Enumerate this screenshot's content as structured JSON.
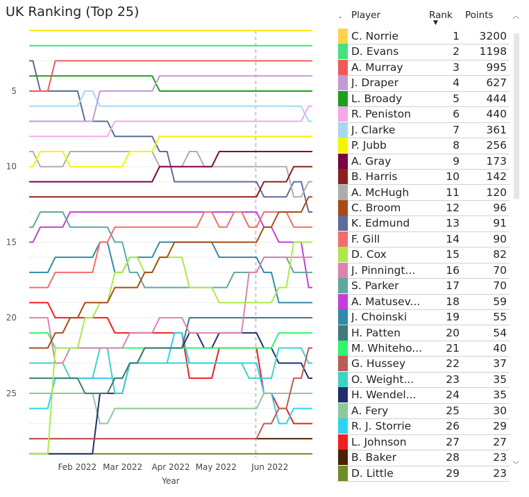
{
  "title": "UK Ranking (Top 25)",
  "chart_data": {
    "type": "line",
    "subtype": "ranking bump chart",
    "title": "UK Ranking (Top 25)",
    "xlabel": "Year",
    "ylabel": "",
    "x_ticks": [
      "Feb 2022",
      "Mar 2022",
      "Apr 2022",
      "May 2022",
      "Jun 2022"
    ],
    "y_ticks": [
      5,
      10,
      15,
      20,
      25
    ],
    "ylim": [
      1,
      28.5
    ],
    "y_inverted": true,
    "grid": true,
    "reference_line_label": "Jun 2022",
    "series": [
      {
        "name": "C. Norrie",
        "color": "#F8E71C",
        "values": [
          1,
          1,
          1,
          1,
          1,
          1,
          1,
          1,
          1,
          1,
          1,
          1,
          1,
          1,
          1,
          1,
          1,
          1,
          1,
          1
        ]
      },
      {
        "name": "D. Evans",
        "color": "#45E17F",
        "values": [
          2,
          2,
          2,
          2,
          2,
          2,
          2,
          2,
          2,
          2,
          2,
          2,
          2,
          2,
          2,
          2,
          2,
          2,
          2,
          2
        ]
      },
      {
        "name": "A. Murray",
        "color": "#EE5B57",
        "values": [
          5,
          5,
          3,
          3,
          3,
          3,
          3,
          3,
          3,
          3,
          3,
          3,
          3,
          3,
          3,
          3,
          3,
          3,
          3,
          3
        ]
      },
      {
        "name": "J. Draper",
        "color": "#C39BD3",
        "values": [
          7,
          7,
          7,
          7,
          7,
          5,
          5,
          5,
          5,
          4,
          4,
          4,
          4,
          4,
          4,
          4,
          4,
          4,
          4,
          4
        ]
      },
      {
        "name": "L. Broady",
        "color": "#1E9E1E",
        "values": [
          4,
          4,
          4,
          4,
          4,
          4,
          4,
          4,
          4,
          5,
          5,
          5,
          5,
          5,
          5,
          5,
          5,
          5,
          5,
          5
        ]
      },
      {
        "name": "R. Peniston",
        "color": "#F5A9E8",
        "values": [
          8,
          8,
          8,
          8,
          8,
          8,
          7,
          7,
          7,
          7,
          7,
          7,
          7,
          7,
          7,
          7,
          7,
          7,
          7,
          6
        ]
      },
      {
        "name": "J. Clarke",
        "color": "#A6D8F0",
        "values": [
          6,
          6,
          6,
          6,
          5,
          6,
          6,
          6,
          6,
          6,
          6,
          6,
          6,
          6,
          6,
          6,
          6,
          6,
          6,
          7
        ]
      },
      {
        "name": "P. Jubb",
        "color": "#F5F500",
        "values": [
          10,
          9,
          9,
          10,
          10,
          10,
          10,
          9,
          9,
          8,
          8,
          8,
          8,
          8,
          8,
          8,
          8,
          8,
          8,
          8
        ]
      },
      {
        "name": "A. Gray",
        "color": "#7B0046",
        "values": [
          11,
          11,
          11,
          11,
          11,
          11,
          11,
          11,
          11,
          10,
          10,
          10,
          10,
          9,
          9,
          9,
          9,
          9,
          9,
          9
        ]
      },
      {
        "name": "B. Harris",
        "color": "#8B2020",
        "values": [
          12,
          12,
          12,
          12,
          12,
          12,
          12,
          12,
          12,
          12,
          12,
          12,
          12,
          12,
          12,
          12,
          11,
          11,
          10,
          10
        ]
      },
      {
        "name": "A. McHugh",
        "color": "#ADADAD",
        "values": [
          9,
          10,
          10,
          9,
          9,
          9,
          9,
          9,
          9,
          10,
          10,
          9,
          10,
          10,
          10,
          10,
          10,
          10,
          12,
          11
        ]
      },
      {
        "name": "C. Broom",
        "color": "#A84C14",
        "values": [
          22,
          22,
          21,
          20,
          19,
          19,
          18,
          18,
          17,
          16,
          15,
          15,
          15,
          15,
          15,
          15,
          14,
          13,
          13,
          12
        ]
      },
      {
        "name": "K. Edmund",
        "color": "#5C6B9C",
        "values": [
          3,
          5,
          5,
          5,
          7,
          7,
          8,
          8,
          8,
          9,
          11,
          11,
          11,
          11,
          11,
          11,
          12,
          12,
          11,
          13
        ]
      },
      {
        "name": "F. Gill",
        "color": "#F56C6C",
        "values": [
          18,
          18,
          17,
          17,
          17,
          15,
          14,
          14,
          14,
          14,
          14,
          14,
          13,
          14,
          13,
          14,
          13,
          13,
          14,
          14
        ]
      },
      {
        "name": "D. Cox",
        "color": "#ABE94A",
        "values": [
          29,
          29,
          22,
          22,
          20,
          19,
          17,
          16,
          17,
          16,
          16,
          18,
          18,
          19,
          19,
          19,
          19,
          18,
          15,
          15
        ]
      },
      {
        "name": "J. Pinnington",
        "color": "#DE82AF",
        "values": [
          20,
          20,
          23,
          22,
          22,
          22,
          22,
          21,
          21,
          20,
          20,
          21,
          21,
          21,
          21,
          17,
          16,
          16,
          16,
          16
        ]
      },
      {
        "name": "S. Parker",
        "color": "#5FA89B",
        "values": [
          14,
          13,
          13,
          14,
          14,
          14,
          15,
          17,
          18,
          18,
          18,
          18,
          18,
          18,
          17,
          17,
          16,
          16,
          17,
          17
        ]
      },
      {
        "name": "A. Matusevich",
        "color": "#C43FD8",
        "values": [
          15,
          14,
          14,
          13,
          13,
          13,
          13,
          13,
          13,
          13,
          13,
          13,
          13,
          13,
          13,
          13,
          14,
          15,
          15,
          18
        ]
      },
      {
        "name": "J. Choinski",
        "color": "#318AA8",
        "values": [
          17,
          17,
          16,
          16,
          16,
          15,
          17,
          16,
          16,
          15,
          15,
          15,
          15,
          16,
          16,
          16,
          17,
          19,
          19,
          19
        ]
      },
      {
        "name": "H. Patten",
        "color": "#3D7A78",
        "values": [
          24,
          24,
          24,
          24,
          25,
          25,
          24,
          23,
          22,
          22,
          22,
          20,
          20,
          20,
          20,
          20,
          20,
          20,
          20,
          20
        ]
      },
      {
        "name": "M. Whitehouse",
        "color": "#2EF56E",
        "values": [
          21,
          21,
          22,
          22,
          22,
          22,
          22,
          22,
          22,
          22,
          22,
          22,
          22,
          22,
          22,
          22,
          22,
          21,
          21,
          21
        ]
      },
      {
        "name": "G. Hussey",
        "color": "#BE5A56",
        "values": [
          28,
          28,
          28,
          28,
          28,
          28,
          28,
          28,
          28,
          28,
          28,
          28,
          28,
          28,
          28,
          28,
          27,
          26,
          24,
          22
        ]
      },
      {
        "name": "O. Weightman",
        "color": "#3FD2C7",
        "values": [
          23,
          23,
          23,
          24,
          24,
          22,
          25,
          23,
          23,
          23,
          23,
          23,
          23,
          23,
          23,
          24,
          24,
          22,
          22,
          23
        ]
      },
      {
        "name": "H. Wendelken",
        "color": "#1F2F6E",
        "values": [
          29,
          29,
          29,
          29,
          29,
          25,
          25,
          23,
          22,
          22,
          22,
          21,
          22,
          21,
          21,
          21,
          22,
          23,
          23,
          24
        ]
      },
      {
        "name": "A. Fery",
        "color": "#8FC89A",
        "values": [
          25,
          25,
          25,
          25,
          25,
          27,
          26,
          26,
          26,
          26,
          26,
          26,
          26,
          26,
          26,
          26,
          25,
          25,
          25,
          25
        ]
      },
      {
        "name": "R. J. Storrie",
        "color": "#2CD2F2",
        "values": [
          26,
          26,
          24,
          24,
          24,
          24,
          24,
          23,
          23,
          23,
          21,
          23,
          23,
          23,
          23,
          23,
          25,
          27,
          26,
          26
        ]
      },
      {
        "name": "L. Johnson",
        "color": "#F21E1E",
        "values": [
          19,
          19,
          20,
          20,
          20,
          20,
          21,
          21,
          21,
          21,
          21,
          24,
          24,
          22,
          22,
          22,
          25,
          26,
          27,
          27
        ]
      },
      {
        "name": "B. Baker",
        "color": "#4B2306",
        "values": [
          28,
          28,
          28,
          28,
          28,
          28,
          28,
          28,
          28,
          28,
          28,
          28,
          28,
          28,
          28,
          28,
          28,
          28,
          28,
          28
        ]
      },
      {
        "name": "D. Little",
        "color": "#6E8C2A",
        "values": [
          29,
          29,
          29,
          29,
          29,
          29,
          29,
          29,
          29,
          29,
          29,
          29,
          29,
          29,
          29,
          29,
          29,
          29,
          29,
          29
        ]
      }
    ]
  },
  "table": {
    "headers": {
      "dot": ".",
      "player": "Player",
      "rank": "Rank",
      "points": "Points"
    },
    "rows": [
      {
        "player": "C. Norrie",
        "rank": "1",
        "points": "3200",
        "color": "#FFD24A"
      },
      {
        "player": "D. Evans",
        "rank": "2",
        "points": "1198",
        "color": "#45E17F"
      },
      {
        "player": "A. Murray",
        "rank": "3",
        "points": "995",
        "color": "#EE5B57"
      },
      {
        "player": "J. Draper",
        "rank": "4",
        "points": "627",
        "color": "#C39BD3"
      },
      {
        "player": "L. Broady",
        "rank": "5",
        "points": "444",
        "color": "#1E9E1E"
      },
      {
        "player": "R. Peniston",
        "rank": "6",
        "points": "440",
        "color": "#F5A9E8"
      },
      {
        "player": "J. Clarke",
        "rank": "7",
        "points": "361",
        "color": "#A6D8F0"
      },
      {
        "player": "P. Jubb",
        "rank": "8",
        "points": "256",
        "color": "#F5F500"
      },
      {
        "player": "A. Gray",
        "rank": "9",
        "points": "173",
        "color": "#7B0046"
      },
      {
        "player": "B. Harris",
        "rank": "10",
        "points": "142",
        "color": "#8B2020"
      },
      {
        "player": "A. McHugh",
        "rank": "11",
        "points": "120",
        "color": "#ADADAD"
      },
      {
        "player": "C. Broom",
        "rank": "12",
        "points": "96",
        "color": "#A84C14"
      },
      {
        "player": "K. Edmund",
        "rank": "13",
        "points": "91",
        "color": "#5C6B9C"
      },
      {
        "player": "F. Gill",
        "rank": "14",
        "points": "90",
        "color": "#F56C6C"
      },
      {
        "player": "D. Cox",
        "rank": "15",
        "points": "82",
        "color": "#ABE94A"
      },
      {
        "player": "J. Pinningt...",
        "rank": "16",
        "points": "70",
        "color": "#DE82AF"
      },
      {
        "player": "S. Parker",
        "rank": "17",
        "points": "70",
        "color": "#5FA89B"
      },
      {
        "player": "A. Matusev...",
        "rank": "18",
        "points": "59",
        "color": "#C43FD8"
      },
      {
        "player": "J. Choinski",
        "rank": "19",
        "points": "55",
        "color": "#318AA8"
      },
      {
        "player": "H. Patten",
        "rank": "20",
        "points": "54",
        "color": "#3D7A78"
      },
      {
        "player": "M. Whiteho...",
        "rank": "21",
        "points": "40",
        "color": "#2EF56E"
      },
      {
        "player": "G. Hussey",
        "rank": "22",
        "points": "37",
        "color": "#BE5A56"
      },
      {
        "player": "O. Weight...",
        "rank": "23",
        "points": "35",
        "color": "#3FD2C7"
      },
      {
        "player": "H. Wendel...",
        "rank": "24",
        "points": "35",
        "color": "#1F2F6E"
      },
      {
        "player": "A. Fery",
        "rank": "25",
        "points": "30",
        "color": "#8FC89A"
      },
      {
        "player": "R. J. Storrie",
        "rank": "26",
        "points": "29",
        "color": "#2CD2F2"
      },
      {
        "player": "L. Johnson",
        "rank": "27",
        "points": "27",
        "color": "#F21E1E"
      },
      {
        "player": "B. Baker",
        "rank": "28",
        "points": "23",
        "color": "#4B2306"
      },
      {
        "player": "D. Little",
        "rank": "29",
        "points": "23",
        "color": "#6E8C2A"
      }
    ]
  }
}
